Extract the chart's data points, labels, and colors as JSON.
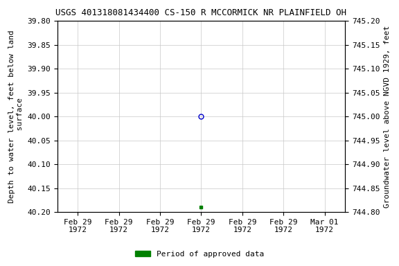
{
  "title": "USGS 401318081434400 CS-150 R MCCORMICK NR PLAINFIELD OH",
  "ylabel_left": "Depth to water level, feet below land\n surface",
  "ylabel_right": "Groundwater level above NGVD 1929, feet",
  "ylim_left": [
    40.2,
    39.8
  ],
  "ylim_right": [
    744.8,
    745.2
  ],
  "left_yticks": [
    39.8,
    39.85,
    39.9,
    39.95,
    40.0,
    40.05,
    40.1,
    40.15,
    40.2
  ],
  "right_yticks": [
    745.2,
    745.15,
    745.1,
    745.05,
    745.0,
    744.95,
    744.9,
    744.85,
    744.8
  ],
  "x_tick_positions": [
    0,
    1,
    2,
    3,
    4,
    5,
    6
  ],
  "x_tick_labels": [
    "Feb 29\n1972",
    "Feb 29\n1972",
    "Feb 29\n1972",
    "Feb 29\n1972",
    "Feb 29\n1972",
    "Feb 29\n1972",
    "Mar 01\n1972"
  ],
  "xlim": [
    -0.5,
    6.5
  ],
  "data_point_x": 3,
  "data_point_y": 40.0,
  "data_point_color": "#0000cc",
  "data_point_marker": "o",
  "data_point_marker_size": 5,
  "data_point_fillstyle": "none",
  "green_point_x": 3,
  "green_point_y": 40.19,
  "green_point_color": "#008000",
  "green_point_marker": "s",
  "green_point_marker_size": 3,
  "legend_label": "Period of approved data",
  "legend_color": "#008000",
  "background_color": "#ffffff",
  "grid_color": "#c8c8c8",
  "title_fontsize": 9,
  "axis_label_fontsize": 8,
  "tick_fontsize": 8,
  "font_family": "monospace"
}
